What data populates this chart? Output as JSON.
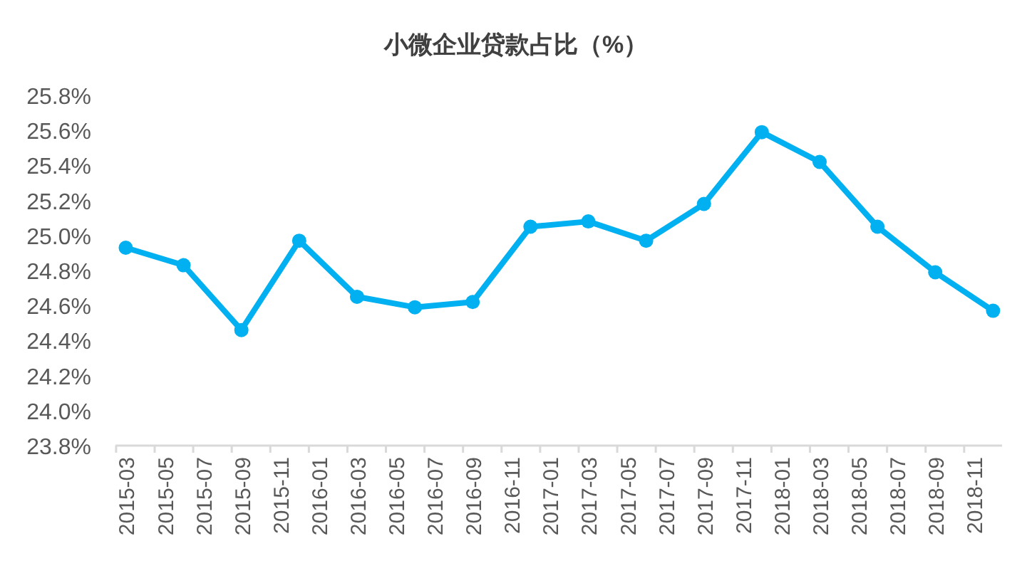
{
  "chart_data": {
    "type": "line",
    "title": "小微企业贷款占比（%）",
    "x": [
      "2015-03",
      "2015-06",
      "2015-09",
      "2015-12",
      "2016-03",
      "2016-06",
      "2016-09",
      "2016-12",
      "2017-03",
      "2017-06",
      "2017-09",
      "2017-12",
      "2018-03",
      "2018-06",
      "2018-09",
      "2018-12"
    ],
    "series": [
      {
        "color": "#00b0f0",
        "values": [
          24.93,
          24.83,
          24.46,
          24.97,
          24.65,
          24.59,
          24.62,
          25.05,
          25.08,
          24.97,
          25.18,
          25.59,
          25.42,
          25.05,
          24.79,
          24.57
        ]
      }
    ],
    "xlim": [
      "2015-02-15",
      "2018-12-15"
    ],
    "xticks": [
      "2015-03",
      "2015-05",
      "2015-07",
      "2015-09",
      "2015-11",
      "2016-01",
      "2016-03",
      "2016-05",
      "2016-07",
      "2016-09",
      "2016-11",
      "2017-01",
      "2017-03",
      "2017-05",
      "2017-07",
      "2017-09",
      "2017-11",
      "2018-01",
      "2018-03",
      "2018-05",
      "2018-07",
      "2018-09",
      "2018-11"
    ],
    "ylim": [
      23.8,
      25.8
    ],
    "yticks": [
      {
        "value": 23.8,
        "label": "23.8%"
      },
      {
        "value": 24.0,
        "label": "24.0%"
      },
      {
        "value": 24.2,
        "label": "24.2%"
      },
      {
        "value": 24.4,
        "label": "24.4%"
      },
      {
        "value": 24.6,
        "label": "24.6%"
      },
      {
        "value": 24.8,
        "label": "24.8%"
      },
      {
        "value": 25.0,
        "label": "25.0%"
      },
      {
        "value": 25.2,
        "label": "25.2%"
      },
      {
        "value": 25.4,
        "label": "25.4%"
      },
      {
        "value": 25.6,
        "label": "25.6%"
      },
      {
        "value": 25.8,
        "label": "25.8%"
      }
    ],
    "grid": false,
    "marker": "circle",
    "line_style": "solid"
  }
}
